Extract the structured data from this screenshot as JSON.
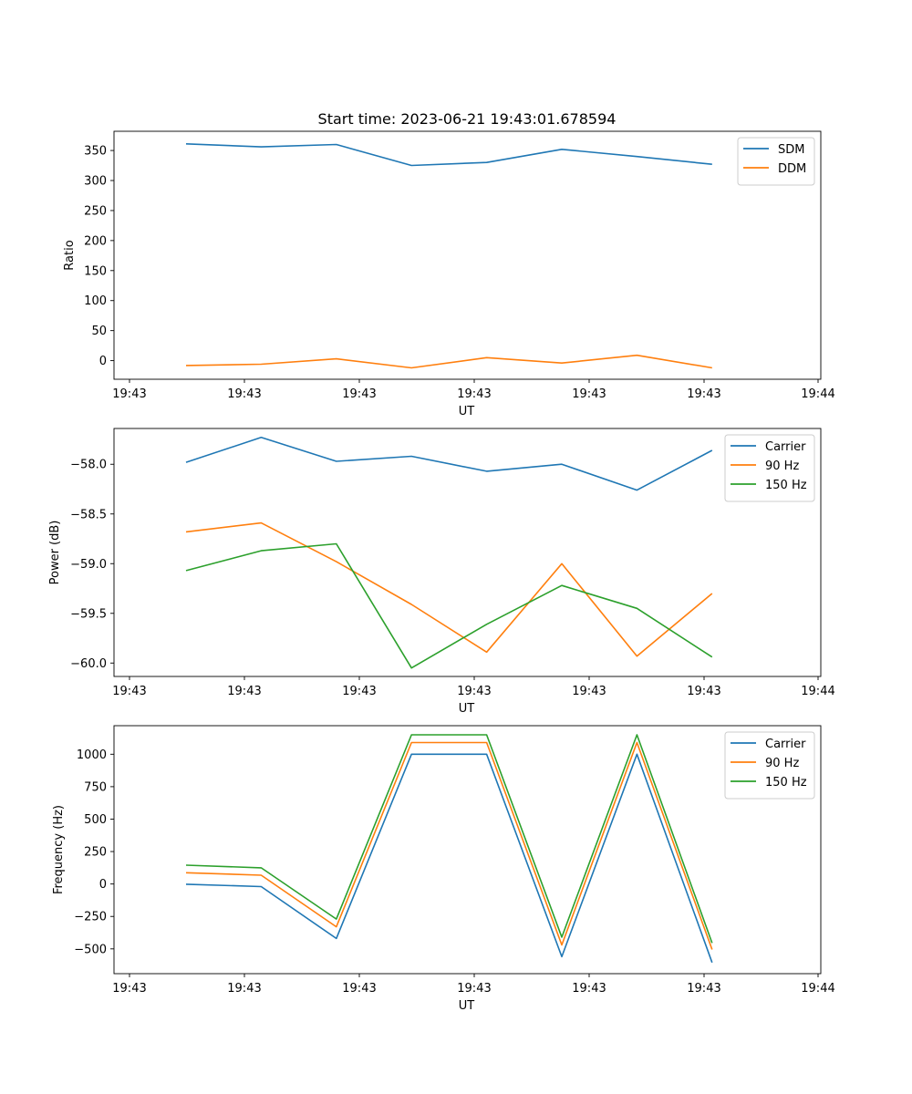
{
  "figure": {
    "title": "Start time: 2023-06-21 19:43:01.678594"
  },
  "chart_data": [
    {
      "type": "line",
      "title": "Start time: 2023-06-21 19:43:01.678594",
      "xlabel": "UT",
      "ylabel": "Ratio",
      "x_tick_labels": [
        "19:43",
        "19:43",
        "19:43",
        "19:43",
        "19:43",
        "19:43",
        "19:44"
      ],
      "x_sample_index": [
        0,
        1,
        2,
        3,
        4,
        5,
        6,
        7
      ],
      "xlim": [
        -0.75,
        8.6
      ],
      "ylim": [
        -31,
        382
      ],
      "y_ticks": [
        0,
        50,
        100,
        150,
        200,
        250,
        300,
        350
      ],
      "y_tick_labels": [
        "0",
        "50",
        "100",
        "150",
        "200",
        "250",
        "300",
        "350"
      ],
      "legend": "top-right",
      "series": [
        {
          "name": "SDM",
          "color": "#1f77b4",
          "values": [
            361,
            356,
            360,
            325,
            330,
            352,
            340,
            327
          ]
        },
        {
          "name": "DDM",
          "color": "#ff7f0e",
          "values": [
            -8,
            -6,
            3,
            -12,
            5,
            -4,
            9,
            -12
          ]
        }
      ]
    },
    {
      "type": "line",
      "xlabel": "UT",
      "ylabel": "Power (dB)",
      "x_tick_labels": [
        "19:43",
        "19:43",
        "19:43",
        "19:43",
        "19:43",
        "19:43",
        "19:44"
      ],
      "x_sample_index": [
        0,
        1,
        2,
        3,
        4,
        5,
        6,
        7
      ],
      "xlim": [
        -0.75,
        8.6
      ],
      "ylim": [
        -60.135,
        -57.64
      ],
      "y_ticks": [
        -60.0,
        -59.5,
        -59.0,
        -58.5,
        -58.0
      ],
      "y_tick_labels": [
        "−60.0",
        "−59.5",
        "−59.0",
        "−58.5",
        "−58.0"
      ],
      "legend": "top-right",
      "series": [
        {
          "name": "Carrier",
          "color": "#1f77b4",
          "values": [
            -57.98,
            -57.73,
            -57.97,
            -57.92,
            -58.07,
            -58.0,
            -58.26,
            -57.86
          ]
        },
        {
          "name": "90 Hz",
          "color": "#ff7f0e",
          "values": [
            -58.68,
            -58.59,
            -58.98,
            -59.41,
            -59.89,
            -59.0,
            -59.93,
            -59.3
          ]
        },
        {
          "name": "150 Hz",
          "color": "#2ca02c",
          "values": [
            -59.07,
            -58.87,
            -58.8,
            -60.05,
            -59.61,
            -59.22,
            -59.45,
            -59.94
          ]
        }
      ]
    },
    {
      "type": "line",
      "xlabel": "UT",
      "ylabel": "Frequency (Hz)",
      "x_tick_labels": [
        "19:43",
        "19:43",
        "19:43",
        "19:43",
        "19:43",
        "19:43",
        "19:44"
      ],
      "x_sample_index": [
        0,
        1,
        2,
        3,
        4,
        5,
        6,
        7
      ],
      "xlim": [
        -0.75,
        8.6
      ],
      "ylim": [
        -691,
        1220
      ],
      "y_ticks": [
        -500,
        -250,
        0,
        250,
        500,
        750,
        1000
      ],
      "y_tick_labels": [
        "−500",
        "−250",
        "0",
        "250",
        "500",
        "750",
        "1000"
      ],
      "legend": "top-right",
      "series": [
        {
          "name": "Carrier",
          "color": "#1f77b4",
          "values": [
            -2,
            -20,
            -420,
            1000,
            1000,
            -560,
            1000,
            -605
          ]
        },
        {
          "name": "90 Hz",
          "color": "#ff7f0e",
          "values": [
            87,
            68,
            -330,
            1090,
            1090,
            -470,
            1090,
            -505
          ]
        },
        {
          "name": "150 Hz",
          "color": "#2ca02c",
          "values": [
            145,
            125,
            -270,
            1150,
            1150,
            -410,
            1150,
            -455
          ]
        }
      ]
    }
  ]
}
